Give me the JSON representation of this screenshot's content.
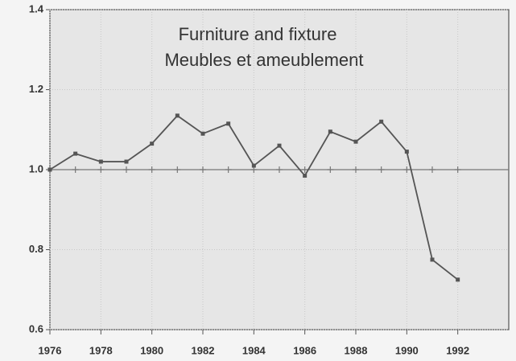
{
  "chart_data": {
    "type": "line",
    "title": "Furniture and fixture",
    "subtitle": "Meubles et ameublement",
    "x": [
      1976,
      1977,
      1978,
      1979,
      1980,
      1981,
      1982,
      1983,
      1984,
      1985,
      1986,
      1987,
      1988,
      1989,
      1990,
      1991,
      1992
    ],
    "series": [
      {
        "name": "Furniture and fixture",
        "color": "#555555",
        "values": [
          1.0,
          1.04,
          1.02,
          1.02,
          1.065,
          1.135,
          1.09,
          1.115,
          1.01,
          1.06,
          0.985,
          1.095,
          1.07,
          1.12,
          1.045,
          0.775,
          0.725
        ]
      }
    ],
    "xlim": [
      1976,
      1994
    ],
    "xticks": [
      1976,
      1978,
      1980,
      1982,
      1984,
      1986,
      1988,
      1990,
      1992
    ],
    "ylim": [
      0.6,
      1.4
    ],
    "yticks": [
      0.6,
      0.8,
      {
        "value": 1,
        "label": "1.0"
      },
      1.2,
      1.4
    ],
    "reference_line": 1,
    "grid": true
  }
}
